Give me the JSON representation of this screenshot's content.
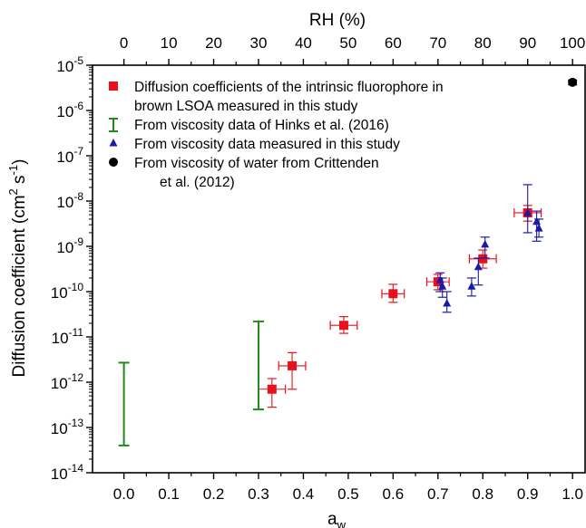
{
  "chart_data": {
    "type": "scatter",
    "xlabel": "a",
    "xlabel_sub": "w",
    "x2label": "RH (%)",
    "ylabel": "Diffusion coefficient (cm",
    "ylabel_sup1": "2",
    "ylabel_mid": " s",
    "ylabel_sup2": "-1",
    "ylabel_end": ")",
    "xlim": [
      -0.07,
      1.03
    ],
    "ylim": [
      1e-14,
      1e-05
    ],
    "yscale": "log",
    "x_ticks": [
      "0.0",
      "0.1",
      "0.2",
      "0.3",
      "0.4",
      "0.5",
      "0.6",
      "0.7",
      "0.8",
      "0.9",
      "1.0"
    ],
    "x2_ticks": [
      "0",
      "10",
      "20",
      "30",
      "40",
      "50",
      "60",
      "70",
      "80",
      "90",
      "100"
    ],
    "y_tick_base": "10",
    "y_tick_exps": [
      "-14",
      "-13",
      "-12",
      "-11",
      "-10",
      "-9",
      "-8",
      "-7",
      "-6",
      "-5"
    ],
    "legend_position": "top-left",
    "series": [
      {
        "name": "Diffusion coefficients of the intrinsic fluorophore in brown LSOA measured in this study",
        "legend_lines": [
          "Diffusion coefficients of the intrinsic fluorophore in",
          "brown LSOA measured in this study"
        ],
        "color": "#e8111b",
        "marker": "square",
        "points": [
          {
            "x": 0.33,
            "y": 7e-13,
            "xerr": 0.03,
            "ylow": 2.8e-13,
            "yhigh": 1.2e-12
          },
          {
            "x": 0.375,
            "y": 2.3e-12,
            "xerr": 0.03,
            "ylow": 7e-13,
            "yhigh": 4.5e-12
          },
          {
            "x": 0.49,
            "y": 1.8e-11,
            "xerr": 0.03,
            "ylow": 1.2e-11,
            "yhigh": 2.8e-11
          },
          {
            "x": 0.6,
            "y": 9e-11,
            "xerr": 0.025,
            "ylow": 5.8e-11,
            "yhigh": 1.45e-10
          },
          {
            "x": 0.7,
            "y": 1.65e-10,
            "xerr": 0.025,
            "ylow": 1.1e-10,
            "yhigh": 2.4e-10
          },
          {
            "x": 0.8,
            "y": 5.3e-10,
            "xerr": 0.03,
            "ylow": 3.3e-10,
            "yhigh": 8.3e-10
          },
          {
            "x": 0.9,
            "y": 5.5e-09,
            "xerr": 0.03,
            "ylow": 3.6e-09,
            "yhigh": 8e-09
          }
        ]
      },
      {
        "name": "From viscosity data of Hinks et al. (2016)",
        "color": "#1f8a17",
        "marker": "range",
        "points": [
          {
            "x": 0.0,
            "ylow": 4e-14,
            "yhigh": 2.7e-12
          },
          {
            "x": 0.3,
            "ylow": 2.5e-13,
            "yhigh": 2.2e-11
          }
        ]
      },
      {
        "name": "From viscosity data measured in this study",
        "color": "#1a1aa6",
        "marker": "triangle",
        "points": [
          {
            "x": 0.705,
            "y": 1.8e-10,
            "ylow": 1e-10,
            "yhigh": 2.6e-10
          },
          {
            "x": 0.71,
            "y": 1.3e-10,
            "ylow": 7.5e-11,
            "yhigh": 2e-10
          },
          {
            "x": 0.72,
            "y": 5.5e-11,
            "ylow": 3.5e-11,
            "yhigh": 1e-10
          },
          {
            "x": 0.775,
            "y": 1.3e-10,
            "ylow": 8e-11,
            "yhigh": 2e-10
          },
          {
            "x": 0.79,
            "y": 3.5e-10,
            "ylow": 1.4e-10,
            "yhigh": 5.5e-10
          },
          {
            "x": 0.805,
            "y": 1.1e-09,
            "ylow": 5.5e-10,
            "yhigh": 1.6e-09
          },
          {
            "x": 0.9,
            "y": 5.5e-09,
            "ylow": 2e-09,
            "yhigh": 2.3e-08
          },
          {
            "x": 0.92,
            "y": 3.5e-09,
            "ylow": 1.3e-09,
            "yhigh": 6e-09
          },
          {
            "x": 0.925,
            "y": 2.5e-09,
            "ylow": 1.6e-09,
            "yhigh": 4e-09
          }
        ]
      },
      {
        "name": "From viscosity of water from Crittenden et al. (2012)",
        "legend_lines": [
          "From viscosity of water from Crittenden",
          "et al. (2012)"
        ],
        "color": "#000000",
        "marker": "circle",
        "points": [
          {
            "x": 1.0,
            "y": 4.2e-06,
            "ylow": 3.7e-06,
            "yhigh": 4.7e-06
          }
        ]
      }
    ]
  }
}
